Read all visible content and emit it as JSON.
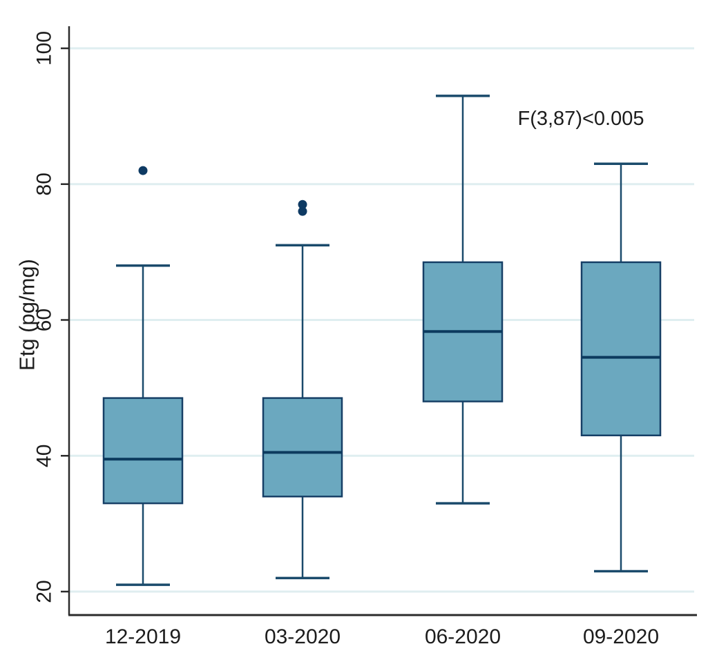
{
  "figure": {
    "background": "#ffffff",
    "annotation_label": "F(3,87)<0.005"
  },
  "chart_data": {
    "type": "boxplot",
    "title": "",
    "xlabel": "",
    "ylabel": "Etg (pg/mg)",
    "ylim": [
      16,
      103
    ],
    "yticks": [
      20,
      40,
      60,
      80,
      100
    ],
    "grid": "horizontal",
    "legend": "none",
    "annotation": "F(3,87)<0.005",
    "categories": [
      "12-2019",
      "03-2020",
      "06-2020",
      "09-2020"
    ],
    "series": [
      {
        "category": "12-2019",
        "whisker_low": 21,
        "q1": 33,
        "median": 39.5,
        "q3": 48.5,
        "whisker_high": 68,
        "outliers": [
          82
        ]
      },
      {
        "category": "03-2020",
        "whisker_low": 22,
        "q1": 34,
        "median": 40.5,
        "q3": 48.5,
        "whisker_high": 71,
        "outliers": [
          76,
          77
        ]
      },
      {
        "category": "06-2020",
        "whisker_low": 33,
        "q1": 48,
        "median": 58.3,
        "q3": 68.5,
        "whisker_high": 93,
        "outliers": []
      },
      {
        "category": "09-2020",
        "whisker_low": 23,
        "q1": 43,
        "median": 54.5,
        "q3": 68.5,
        "whisker_high": 83,
        "outliers": []
      }
    ],
    "colors": {
      "box_fill": "#6BA8BF",
      "box_border": "#163F66",
      "median": "#0C3A5E",
      "whisker": "#1A4A6B",
      "outlier": "#0E3A63",
      "gridline": "#DFEEF0",
      "axis": "#2B2B2B",
      "text": "#1C1C1C"
    }
  }
}
